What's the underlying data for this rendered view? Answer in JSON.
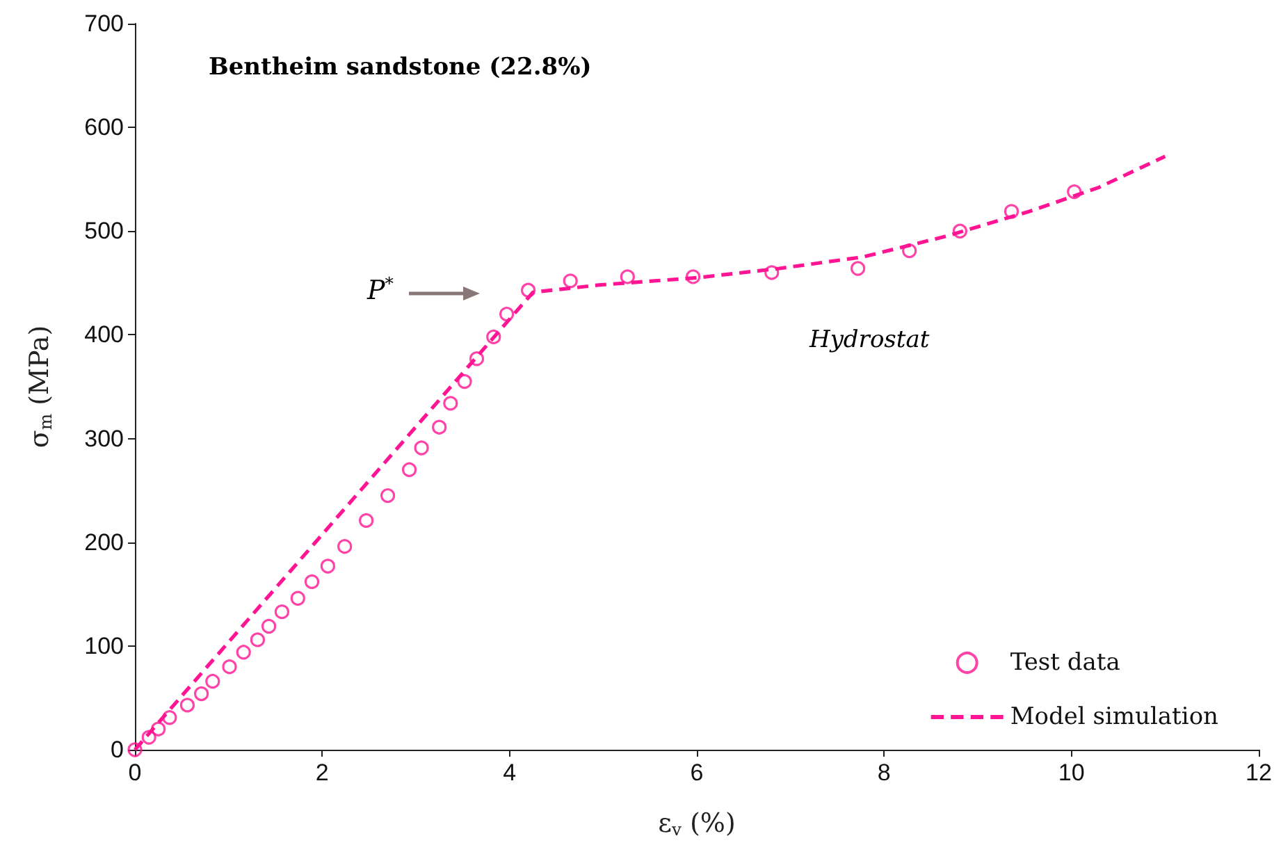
{
  "chart_data": {
    "type": "scatter",
    "xlabel": "ε$_{v}$ (%)",
    "ylabel": "σ$_{m}$ (MPa)",
    "xlim": [
      0,
      12
    ],
    "xticks": [
      0,
      2,
      4,
      6,
      8,
      10,
      12
    ],
    "ylim": [
      0,
      700
    ],
    "yticks": [
      0,
      100,
      200,
      300,
      400,
      500,
      600,
      700
    ],
    "grid": false,
    "legend": "bottom right",
    "annotations": [
      "Bentheim sandstone (22.8%)",
      "Hydrostat",
      "P$^{*}$"
    ],
    "series": [
      {
        "name": "Test data",
        "marker": "circle",
        "color": "#ff1493",
        "x": [
          0,
          0.15,
          0.25,
          0.37,
          0.56,
          0.71,
          0.83,
          1.01,
          1.16,
          1.31,
          1.43,
          1.57,
          1.74,
          1.89,
          2.06,
          2.24,
          2.47,
          2.7,
          2.93,
          3.06,
          3.25,
          3.37,
          3.52,
          3.65,
          3.83,
          3.97,
          4.2,
          4.65,
          5.26,
          5.96,
          6.8,
          7.72,
          8.27,
          8.81,
          9.36,
          10.03
        ],
        "values": [
          0,
          12,
          20,
          31,
          43,
          54,
          66,
          80,
          94,
          106,
          119,
          133,
          146,
          162,
          177,
          196,
          221,
          245,
          270,
          291,
          311,
          334,
          355,
          377,
          398,
          420,
          443,
          452,
          456,
          456,
          460,
          464,
          481,
          500,
          519,
          538
        ]
      },
      {
        "name": "Model simulation",
        "type": "line",
        "marker": "none",
        "line_style": "dashed",
        "color": "#ff1493",
        "x": [
          0,
          4.25,
          4.95,
          6,
          6.88,
          7.77,
          8.66,
          9.55,
          10.29,
          11
        ],
        "values": [
          0,
          441,
          448,
          455,
          464,
          475,
          495,
          519,
          542,
          572
        ]
      }
    ]
  }
}
